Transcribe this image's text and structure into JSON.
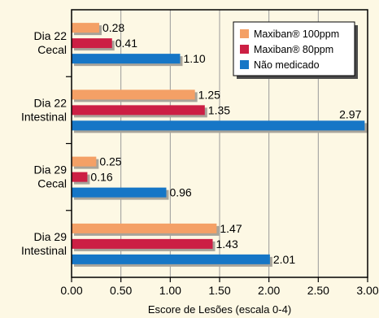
{
  "chart_data": {
    "type": "bar",
    "orientation": "horizontal",
    "categories": [
      [
        "Dia 22",
        "Cecal"
      ],
      [
        "Dia 22",
        "Intestinal"
      ],
      [
        "Dia 29",
        "Cecal"
      ],
      [
        "Dia 29",
        "Intestinal"
      ]
    ],
    "series": [
      {
        "name": "Maxiban® 100ppm",
        "color": "#f4a066",
        "values": [
          0.28,
          1.25,
          0.25,
          1.47
        ],
        "labels": [
          "0.28",
          "1.25",
          "0.25",
          "1.47"
        ]
      },
      {
        "name": "Maxiban® 80ppm",
        "color": "#cc1f44",
        "values": [
          0.41,
          1.35,
          0.16,
          1.43
        ],
        "labels": [
          "0.41",
          "1.35",
          "0.16",
          "1.43"
        ]
      },
      {
        "name": "Não medicado",
        "color": "#1676c6",
        "values": [
          1.1,
          2.97,
          0.96,
          2.01
        ],
        "labels": [
          "1.10",
          "2.97",
          "0.96",
          "2.01"
        ]
      }
    ],
    "xlabel": "Escore de Lesões (escala 0-4)",
    "xlim": [
      0,
      3
    ],
    "xticks": [
      "0.00",
      "0.50",
      "1.00",
      "1.50",
      "2.00",
      "2.50",
      "3.00"
    ],
    "grid": true,
    "legend": "top-right",
    "bar_shadow_color": "#a8a49a",
    "grid_color": "#9a9a9a",
    "background": "#fdf8e4"
  }
}
